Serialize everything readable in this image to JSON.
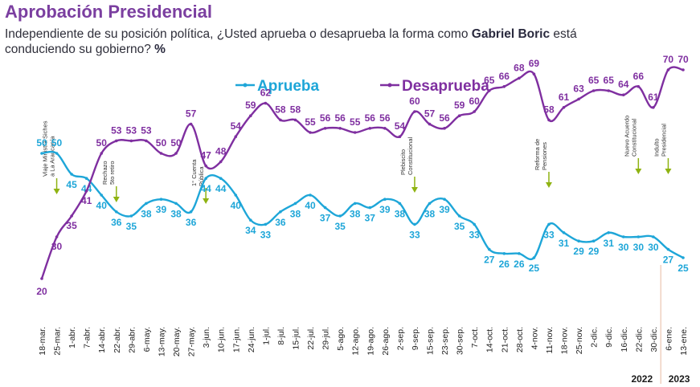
{
  "header": {
    "title": "Aprobación Presidencial",
    "subtitle_before": "Independiente de su posición política, ¿Usted aprueba o desaprueba la forma como ",
    "subtitle_bold": "Gabriel Boric",
    "subtitle_after": " está conduciendo su gobierno? ",
    "subtitle_pct": "%"
  },
  "colors": {
    "aprueba": "#1ea6d8",
    "desaprueba": "#7f2fa0",
    "title": "#7b3fa0",
    "divider": "#e8b9a0"
  },
  "chart_data": {
    "type": "line",
    "title": "Aprobación Presidencial",
    "xlabel": "",
    "ylabel": "",
    "ylim": [
      15,
      75
    ],
    "legend": "top",
    "grid": false,
    "categories": [
      "18-mar.",
      "25-mar.",
      "1-abr.",
      "7-abr.",
      "14-abr.",
      "22-abr.",
      "29-abr.",
      "6-may.",
      "13-may.",
      "20-may.",
      "27-may.",
      "3-jun.",
      "10-jun.",
      "17-jun.",
      "24-jun.",
      "1-jul.",
      "8-jul.",
      "15-jul.",
      "22-jul.",
      "29-jul.",
      "5-ago.",
      "12-ago.",
      "19-ago.",
      "26-ago.",
      "2-sep.",
      "9-sep.",
      "15-sep.",
      "23-sep.",
      "30-sep.",
      "7-oct.",
      "14-oct.",
      "21-oct.",
      "28-oct.",
      "4-nov.",
      "11-nov.",
      "18-nov.",
      "25-nov.",
      "2-dic.",
      "9-dic.",
      "16-dic.",
      "22-dic.",
      "30-dic.",
      "6-ene.",
      "13-ene."
    ],
    "series": [
      {
        "name": "Aprueba",
        "values": [
          50,
          50,
          45,
          44,
          40,
          36,
          35,
          38,
          39,
          38,
          36,
          44,
          44,
          40,
          34,
          33,
          36,
          38,
          40,
          37,
          35,
          38,
          37,
          39,
          38,
          33,
          38,
          39,
          35,
          33,
          27,
          26,
          26,
          25,
          33,
          31,
          29,
          29,
          31,
          30,
          30,
          30,
          27,
          25
        ]
      },
      {
        "name": "Desaprueba",
        "values": [
          20,
          30,
          35,
          41,
          50,
          53,
          53,
          53,
          50,
          50,
          57,
          47,
          48,
          54,
          59,
          62,
          58,
          58,
          55,
          56,
          56,
          55,
          56,
          56,
          54,
          60,
          57,
          56,
          59,
          60,
          65,
          66,
          68,
          69,
          58,
          61,
          63,
          65,
          65,
          64,
          66,
          61,
          70,
          70
        ]
      }
    ],
    "year_labels": [
      "2022",
      "2023"
    ],
    "annotations": [
      {
        "index": 1,
        "text": [
          "Viaje Ministra Siches",
          "a La Araucanía"
        ]
      },
      {
        "index": 5,
        "text": [
          "Rechazo",
          "5to retiro"
        ]
      },
      {
        "index": 11,
        "text": [
          "1° Cuenta",
          "Pública"
        ]
      },
      {
        "index": 25,
        "text": [
          "Plebiscito",
          "Constitucional"
        ]
      },
      {
        "index": 34,
        "text": [
          "Reforma de",
          "Pensiones"
        ]
      },
      {
        "index": 40,
        "text": [
          "Nuevo Acuerdo",
          "Constitucional"
        ]
      },
      {
        "index": 42,
        "text": [
          "Indulto",
          "Presidencial"
        ]
      }
    ]
  }
}
